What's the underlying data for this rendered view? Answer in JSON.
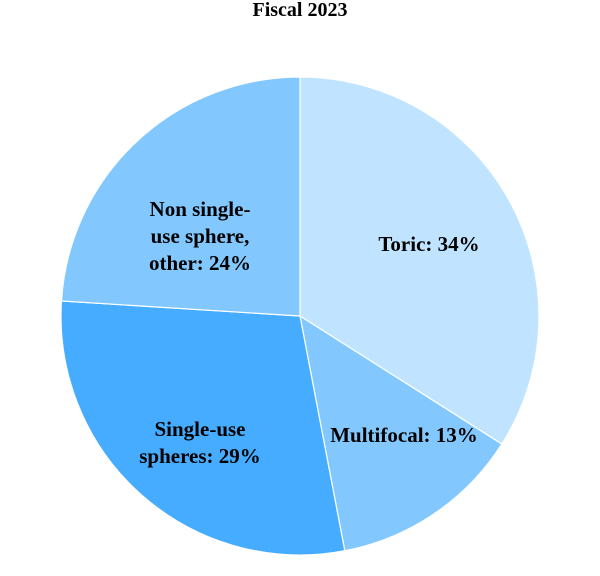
{
  "chart_data": {
    "type": "pie",
    "title": "Fiscal 2023",
    "slices": [
      {
        "name": "Toric",
        "value": 34,
        "label_lines": [
          "Toric: 34%"
        ],
        "color": "#c0e4ff"
      },
      {
        "name": "Multifocal",
        "value": 13,
        "label_lines": [
          "Multifocal: 13%"
        ],
        "color": "#82c8fe"
      },
      {
        "name": "Single-use spheres",
        "value": 29,
        "label_lines": [
          "Single-use",
          "spheres: 29%"
        ],
        "color": "#45acff"
      },
      {
        "name": "Non single-use sphere, other",
        "value": 24,
        "label_lines": [
          "Non single-",
          "use sphere,",
          "other: 24%"
        ],
        "color": "#82c8fe"
      }
    ],
    "start_angle": "12 o'clock",
    "direction": "clockwise",
    "legend": "none"
  }
}
